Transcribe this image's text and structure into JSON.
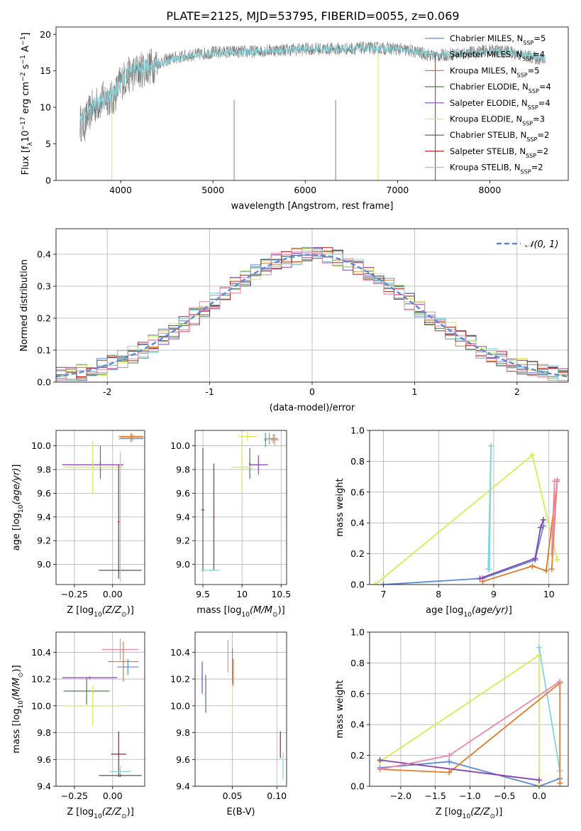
{
  "title": "PLATE=2125, MJD=53795, FIBERID=0055, z=0.069",
  "legend_spectrum": [
    {
      "label": "Chabrier MILES, N",
      "sub": "SSP",
      "suffix": "=5",
      "color": "#5b8bd6"
    },
    {
      "label": "Salpeter MILES, N",
      "sub": "SSP",
      "suffix": "=4",
      "color": "#999999"
    },
    {
      "label": "Kroupa MILES, N",
      "sub": "SSP",
      "suffix": "=5",
      "color": "#e07b2a"
    },
    {
      "label": "Chabrier ELODIE, N",
      "sub": "SSP",
      "suffix": "=4",
      "color": "#4e7d4e"
    },
    {
      "label": "Salpeter ELODIE, N",
      "sub": "SSP",
      "suffix": "=4",
      "color": "#8844aa"
    },
    {
      "label": "Kroupa ELODIE, N",
      "sub": "SSP",
      "suffix": "=3",
      "color": "#d8ec50"
    },
    {
      "label": "Chabrier STELIB, N",
      "sub": "SSP",
      "suffix": "=2",
      "color": "#555555"
    },
    {
      "label": "Salpeter STELIB, N",
      "sub": "SSP",
      "suffix": "=2",
      "color": "#b52020"
    },
    {
      "label": "Kroupa STELIB, N",
      "sub": "SSP",
      "suffix": "=2",
      "color": "#7fd6dc"
    }
  ],
  "legend_normal": "𝒩(0, 1)",
  "chart_data": [
    {
      "id": "spectrum",
      "type": "line",
      "xlabel": "wavelength [Angstrom, rest frame]",
      "ylabel": "Flux [f",
      "xlim": [
        3300,
        8850
      ],
      "ylim": [
        0,
        21
      ],
      "xticks": [
        4000,
        5000,
        6000,
        7000,
        8000
      ],
      "yticks": [
        0,
        5,
        10,
        15,
        20
      ],
      "series": [
        {
          "name": "data",
          "color": "#808080",
          "x": [
            3560,
            3600,
            3650,
            3700,
            3750,
            3800,
            3850,
            3900,
            3950,
            4000,
            4100,
            4200,
            4300,
            4400,
            4500,
            4600,
            4800,
            5000,
            5200,
            5400,
            5600,
            5800,
            6000,
            6200,
            6400,
            6600,
            6800,
            7000,
            7200,
            7400,
            7600,
            7800,
            8000,
            8200,
            8400,
            8600
          ],
          "y": [
            8.0,
            7.5,
            9.0,
            10.0,
            10.5,
            11.0,
            11.5,
            11.0,
            12.0,
            13.5,
            14.5,
            15.0,
            15.5,
            16.0,
            16.5,
            16.8,
            17.2,
            17.5,
            17.6,
            17.6,
            17.8,
            17.9,
            18.0,
            18.0,
            18.0,
            18.1,
            18.1,
            18.0,
            17.6,
            17.0,
            17.3,
            17.5,
            17.8,
            17.6,
            17.0,
            16.5
          ]
        },
        {
          "name": "model",
          "color": "#7fd6dc",
          "x": [
            3560,
            3650,
            3750,
            3850,
            3950,
            4050,
            4200,
            4400,
            4600,
            4800,
            5000,
            5400,
            5800,
            6200,
            6600,
            7000,
            7400,
            7800,
            8200,
            8600
          ],
          "y": [
            8.5,
            9.5,
            10.5,
            11.3,
            12.3,
            14.5,
            15.2,
            16.0,
            16.6,
            17.1,
            17.4,
            17.6,
            17.9,
            18.0,
            18.1,
            18.0,
            17.2,
            17.5,
            17.6,
            16.8
          ]
        }
      ]
    },
    {
      "id": "residuals",
      "type": "line",
      "xlabel": "(data-model)/error",
      "ylabel": "Normed distribution",
      "xlim": [
        -2.5,
        2.5
      ],
      "ylim": [
        0,
        0.48
      ],
      "xticks": [
        -2,
        -1,
        0,
        1,
        2
      ],
      "yticks": [
        0.0,
        0.1,
        0.2,
        0.3,
        0.4
      ],
      "grid": true,
      "series": [
        {
          "name": "𝒩(0, 1)",
          "color": "#5b8bd6",
          "dashed": true,
          "function": "normal",
          "mean": 0,
          "sigma": 1
        }
      ]
    },
    {
      "id": "age_vs_Z",
      "type": "errorbar",
      "xlabel": "Z [log",
      "ylabel": "age  [log",
      "xlim": [
        -0.37,
        0.21
      ],
      "ylim": [
        8.83,
        10.13
      ],
      "xticks": [
        -0.25,
        0.0
      ],
      "xticklabels": [
        "−0.25",
        "0.00"
      ],
      "yticks": [
        9.0,
        9.2,
        9.4,
        9.6,
        9.8,
        10.0
      ],
      "grid": true,
      "points": [
        {
          "color": "#5b8bd6",
          "x": 0.12,
          "xerr": 0.08,
          "y": 10.06,
          "yerr": 0.03
        },
        {
          "color": "#999999",
          "x": 0.13,
          "xerr": 0.08,
          "y": 10.07,
          "yerr": 0.03
        },
        {
          "color": "#e07b2a",
          "x": 0.12,
          "xerr": 0.08,
          "y": 10.08,
          "yerr": 0.03
        },
        {
          "color": "#4e7d4e",
          "x": -0.08,
          "xerr": 0.005,
          "y": 9.86,
          "yerr": 0.14
        },
        {
          "color": "#8844aa",
          "x": -0.13,
          "xerr": 0.2,
          "y": 9.84,
          "yerr": 0.02
        },
        {
          "color": "#d8ec50",
          "x": -0.13,
          "xerr": 0.2,
          "y": 9.82,
          "yerr": 0.22
        },
        {
          "color": "#555555",
          "x": 0.05,
          "xerr": 0.14,
          "y": 8.95,
          "yerr": 0.01
        },
        {
          "color": "#b52020",
          "x": 0.04,
          "xerr": 0.005,
          "y": 9.36,
          "yerr": 0.48
        },
        {
          "color": "#7fd6dc",
          "x": 0.05,
          "xerr": 0.005,
          "y": 9.4,
          "yerr": 0.55
        }
      ]
    },
    {
      "id": "age_vs_mass",
      "type": "errorbar",
      "xlabel": "mass [log",
      "ylabel": "",
      "xlim": [
        9.4,
        10.57
      ],
      "ylim": [
        8.83,
        10.13
      ],
      "xticks": [
        9.5,
        10.0,
        10.5
      ],
      "yticks": [
        9.0,
        9.2,
        9.4,
        9.6,
        9.8,
        10.0
      ],
      "grid": true,
      "points": [
        {
          "color": "#5b8bd6",
          "x": 10.3,
          "xerr": 0.02,
          "y": 10.05,
          "yerr": 0.06
        },
        {
          "color": "#999999",
          "x": 10.35,
          "xerr": 0.06,
          "y": 10.06,
          "yerr": 0.05
        },
        {
          "color": "#e07b2a",
          "x": 10.4,
          "xerr": 0.06,
          "y": 10.06,
          "yerr": 0.04
        },
        {
          "color": "#ee88aa",
          "x": 10.42,
          "xerr": 0.05,
          "y": 10.05,
          "yerr": 0.05
        },
        {
          "color": "#d8ec50",
          "x": 10.07,
          "xerr": 0.12,
          "y": 10.08,
          "yerr": 0.04
        },
        {
          "color": "#4e7d4e",
          "x": 10.1,
          "xerr": 0.01,
          "y": 9.85,
          "yerr": 0.13
        },
        {
          "color": "#8844aa",
          "x": 10.21,
          "xerr": 0.12,
          "y": 9.84,
          "yerr": 0.08
        },
        {
          "color": "#d8ec50",
          "x": 10.0,
          "xerr": 0.14,
          "y": 9.82,
          "yerr": 0.22
        },
        {
          "color": "#555555",
          "x": 9.5,
          "xerr": 0.02,
          "y": 9.46,
          "yerr": 0.52
        },
        {
          "color": "#b52020",
          "x": 9.64,
          "xerr": 0.01,
          "y": 9.4,
          "yerr": 0.45
        },
        {
          "color": "#7fd6dc",
          "x": 9.6,
          "xerr": 0.12,
          "y": 8.95,
          "yerr": 0.01
        }
      ]
    },
    {
      "id": "weight_vs_age",
      "type": "line",
      "xlabel": "age  [log",
      "ylabel": "mass weight",
      "xlim": [
        6.75,
        10.35
      ],
      "ylim": [
        0,
        1
      ],
      "xticks": [
        7,
        8,
        9,
        10
      ],
      "yticks": [
        0.0,
        0.2,
        0.4,
        0.6,
        0.8,
        1.0
      ],
      "grid": true,
      "series": [
        {
          "color": "#5b8bd6",
          "x": [
            7.0,
            8.8,
            9.75,
            9.9
          ],
          "y": [
            0.0,
            0.04,
            0.16,
            0.38
          ]
        },
        {
          "color": "#d8ec50",
          "x": [
            6.85,
            9.7,
            10.15
          ],
          "y": [
            0.0,
            0.84,
            0.16
          ]
        },
        {
          "color": "#7fd6dc",
          "x": [
            8.92,
            8.95,
            8.9
          ],
          "y": [
            0.1,
            0.9,
            0.1
          ]
        },
        {
          "color": "#e07b2a",
          "x": [
            8.8,
            9.7,
            9.95,
            10.15,
            10.05
          ],
          "y": [
            0.02,
            0.12,
            0.09,
            0.67,
            0.1
          ]
        },
        {
          "color": "#8844aa",
          "x": [
            8.75,
            9.75,
            9.85,
            9.9
          ],
          "y": [
            0.04,
            0.17,
            0.37,
            0.42
          ]
        },
        {
          "color": "#ee88aa",
          "x": [
            10.1,
            10.05,
            10.15
          ],
          "y": [
            0.67,
            0.2,
            0.68
          ]
        }
      ]
    },
    {
      "id": "mass_vs_Z",
      "type": "errorbar",
      "xlabel": "Z [log",
      "ylabel": "mass [log",
      "xlim": [
        -0.37,
        0.21
      ],
      "ylim": [
        9.4,
        10.55
      ],
      "xticks": [
        -0.25,
        0.0
      ],
      "xticklabels": [
        "−0.25",
        "0.00"
      ],
      "yticks": [
        9.4,
        9.6,
        9.8,
        10.0,
        10.2,
        10.4
      ],
      "grid": true,
      "points": [
        {
          "color": "#ee88aa",
          "x": 0.05,
          "xerr": 0.12,
          "y": 10.42,
          "yerr": 0.08
        },
        {
          "color": "#e07b2a",
          "x": 0.07,
          "xerr": 0.1,
          "y": 10.33,
          "yerr": 0.15
        },
        {
          "color": "#5b8bd6",
          "x": 0.1,
          "xerr": 0.07,
          "y": 10.29,
          "yerr": 0.06
        },
        {
          "color": "#8844aa",
          "x": -0.15,
          "xerr": 0.18,
          "y": 10.21,
          "yerr": 0.01
        },
        {
          "color": "#4e7d4e",
          "x": -0.17,
          "xerr": 0.15,
          "y": 10.11,
          "yerr": 0.1
        },
        {
          "color": "#d8ec50",
          "x": -0.13,
          "xerr": 0.2,
          "y": 10.0,
          "yerr": 0.15
        },
        {
          "color": "#b52020",
          "x": 0.04,
          "xerr": 0.05,
          "y": 9.64,
          "yerr": 0.17
        },
        {
          "color": "#7fd6dc",
          "x": 0.05,
          "xerr": 0.07,
          "y": 9.51,
          "yerr": 0.04
        },
        {
          "color": "#555555",
          "x": 0.05,
          "xerr": 0.14,
          "y": 9.48,
          "yerr": 0.01
        }
      ]
    },
    {
      "id": "mass_vs_EBV",
      "type": "errorbar",
      "xlabel": "E(B-V)",
      "ylabel": "",
      "xlim": [
        0.008,
        0.111
      ],
      "ylim": [
        9.4,
        10.55
      ],
      "xticks": [
        0.05,
        0.1
      ],
      "xticklabels": [
        "0.05",
        "0.10"
      ],
      "yticks": [
        9.4,
        9.6,
        9.8,
        10.0,
        10.2,
        10.4
      ],
      "grid": true,
      "points": [
        {
          "color": "#8844aa",
          "x": 0.016,
          "xerr": 0.0,
          "y": 10.21,
          "yerr": 0.12
        },
        {
          "color": "#4e7d4e",
          "x": 0.02,
          "xerr": 0.0,
          "y": 10.09,
          "yerr": 0.14
        },
        {
          "color": "#ee88aa",
          "x": 0.045,
          "xerr": 0.0,
          "y": 10.37,
          "yerr": 0.12
        },
        {
          "color": "#5b8bd6",
          "x": 0.05,
          "xerr": 0.0,
          "y": 10.3,
          "yerr": 0.13
        },
        {
          "color": "#e07b2a",
          "x": 0.051,
          "xerr": 0.0,
          "y": 10.25,
          "yerr": 0.1
        },
        {
          "color": "#d8ec50",
          "x": 0.05,
          "xerr": 0.0,
          "y": 10.0,
          "yerr": 0.15
        },
        {
          "color": "#b52020",
          "x": 0.104,
          "xerr": 0.0,
          "y": 9.71,
          "yerr": 0.1
        },
        {
          "color": "#7fd6dc",
          "x": 0.107,
          "xerr": 0.0,
          "y": 9.55,
          "yerr": 0.1
        }
      ]
    },
    {
      "id": "weight_vs_Z",
      "type": "line",
      "xlabel": "Z [log",
      "ylabel": "mass weight",
      "xlim": [
        -2.45,
        0.42
      ],
      "ylim": [
        0,
        1
      ],
      "xticks": [
        -2.0,
        -1.5,
        -1.0,
        -0.5,
        0.0
      ],
      "xticklabels": [
        "−2.0",
        "−1.5",
        "−1.0",
        "−0.5",
        "0.0"
      ],
      "yticks": [
        0.0,
        0.2,
        0.4,
        0.6,
        0.8,
        1.0
      ],
      "grid": true,
      "series": [
        {
          "color": "#5b8bd6",
          "x": [
            -2.3,
            -1.3,
            0.0,
            0.3
          ],
          "y": [
            0.12,
            0.16,
            0.0,
            0.05
          ]
        },
        {
          "color": "#d8ec50",
          "x": [
            -2.3,
            0.0,
            0.0
          ],
          "y": [
            0.16,
            0.85,
            0.0
          ]
        },
        {
          "color": "#7fd6dc",
          "x": [
            0.0,
            0.0,
            0.3,
            0.3
          ],
          "y": [
            0.9,
            0.9,
            0.1,
            0.1
          ]
        },
        {
          "color": "#e07b2a",
          "x": [
            -2.3,
            -1.3,
            0.3,
            0.3
          ],
          "y": [
            0.11,
            0.09,
            0.67,
            0.02
          ]
        },
        {
          "color": "#8844aa",
          "x": [
            -2.3,
            0.0
          ],
          "y": [
            0.17,
            0.04
          ]
        },
        {
          "color": "#ee88aa",
          "x": [
            -2.3,
            -1.3,
            0.3
          ],
          "y": [
            0.11,
            0.2,
            0.68
          ]
        }
      ]
    }
  ]
}
